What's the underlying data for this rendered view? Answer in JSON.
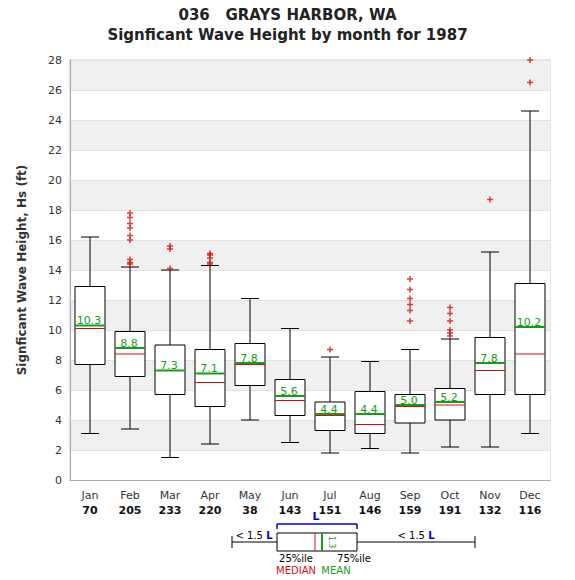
{
  "chart_data": {
    "type": "boxplot",
    "title": "036   GRAYS HARBOR, WA",
    "subtitle": "Signficant Wave Height by month for 1987",
    "y_label": "Signficant Wave Height, Hs (ft)",
    "categories": [
      "Jan",
      "Feb",
      "Mar",
      "Apr",
      "May",
      "Jun",
      "Jul",
      "Aug",
      "Sep",
      "Oct",
      "Nov",
      "Dec"
    ],
    "counts": [
      70,
      205,
      233,
      220,
      38,
      143,
      151,
      146,
      159,
      191,
      132,
      116
    ],
    "whisker_low": [
      3.1,
      3.4,
      1.5,
      2.4,
      4.0,
      2.5,
      1.8,
      2.1,
      1.8,
      2.2,
      2.2,
      3.1
    ],
    "q1": [
      7.7,
      6.9,
      5.7,
      4.9,
      6.3,
      4.3,
      3.3,
      3.1,
      3.8,
      4.0,
      5.7,
      5.7
    ],
    "median": [
      10.1,
      8.4,
      7.3,
      6.5,
      7.7,
      5.3,
      4.3,
      3.7,
      4.9,
      5.0,
      7.3,
      8.4
    ],
    "q3": [
      12.9,
      9.9,
      9.0,
      8.7,
      9.1,
      6.7,
      5.2,
      5.9,
      5.7,
      6.1,
      9.5,
      13.1
    ],
    "whisker_high": [
      16.2,
      14.2,
      14.0,
      14.3,
      12.1,
      10.1,
      8.2,
      7.9,
      8.7,
      9.4,
      15.2,
      24.6
    ],
    "mean": [
      10.3,
      8.8,
      7.3,
      7.1,
      7.8,
      5.6,
      4.4,
      4.4,
      5.0,
      5.2,
      7.8,
      10.2
    ],
    "mean_labels": [
      "10.3",
      "8.8",
      "7.3",
      "7.1",
      "7.8",
      "5.6",
      "4.4",
      "4.4",
      "5.0",
      "5.2",
      "7.8",
      "10.2"
    ],
    "data_labels": true,
    "outliers": [
      [],
      [
        17.8,
        17.5,
        17.1,
        16.8,
        16.3,
        16.0,
        14.7,
        14.5,
        14.4
      ],
      [
        15.6,
        15.4,
        14.1
      ],
      [
        15.1,
        15.0,
        14.8,
        14.5,
        14.4
      ],
      [],
      [],
      [
        8.7
      ],
      [],
      [
        13.4,
        12.7,
        12.1,
        11.7,
        11.3,
        10.6
      ],
      [
        11.5,
        11.1,
        10.6,
        10.0,
        9.8,
        9.6
      ],
      [
        18.7
      ],
      [
        28.0,
        26.5
      ]
    ],
    "ylim": [
      0,
      28
    ],
    "yticks": [
      0,
      2,
      4,
      6,
      8,
      10,
      12,
      14,
      16,
      18,
      20,
      22,
      24,
      26,
      28
    ],
    "grid": true,
    "key": {
      "span_label": "L",
      "whisker_label": "< 1.5 L",
      "lower_label": "25%ile",
      "upper_label": "75%ile",
      "median_label": "MEDIAN",
      "mean_label": "MEAN",
      "ratio_label": "1.3"
    }
  }
}
